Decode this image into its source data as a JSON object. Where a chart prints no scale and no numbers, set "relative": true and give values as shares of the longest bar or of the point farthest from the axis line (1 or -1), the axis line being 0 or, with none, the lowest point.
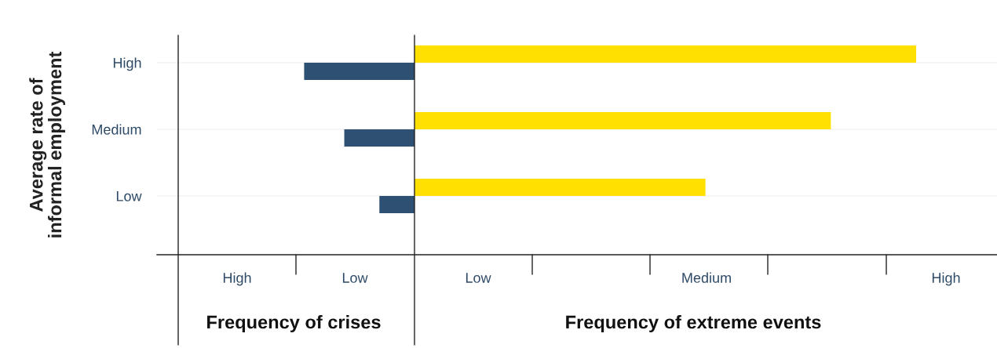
{
  "chart_data": {
    "type": "bar",
    "orientation": "horizontal",
    "relative": true,
    "ylabel": "Average rate of\ninformal employment",
    "categories": [
      "High",
      "Medium",
      "Low"
    ],
    "series": [
      {
        "color": "#ffe000",
        "values": [
          1,
          0.83,
          0.58
        ]
      },
      {
        "color": "#2e5073",
        "values": [
          -0.22,
          -0.14,
          -0.07
        ]
      }
    ],
    "grid": "y",
    "annotations": [
      "High",
      "Low",
      "Low",
      "Medium",
      "High",
      "Frequency of crises",
      "Frequency of extreme events"
    ]
  }
}
